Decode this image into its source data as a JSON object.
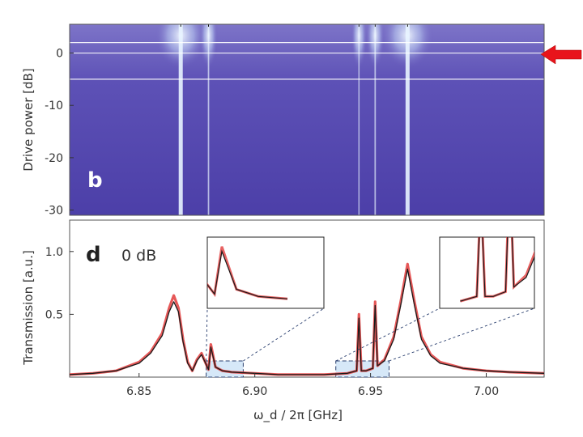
{
  "chart_data": [
    {
      "type": "heatmap",
      "panel_label": "b",
      "ylabel": "Drive power  [dB]",
      "y_ticks": [
        0,
        -10,
        -20,
        -30
      ],
      "ylim": [
        -31,
        5.5
      ],
      "xlim": [
        6.82,
        7.025
      ],
      "resonance_dips_ghz": [
        6.868,
        6.88,
        6.945,
        6.952,
        6.966
      ],
      "marker_power_lines_db": [
        2,
        0,
        -5
      ],
      "arrow_at_db": 0,
      "colors": {
        "background": "#5b4fb4",
        "dip": "#e8f4ff",
        "arrow": "#e8141b"
      }
    },
    {
      "type": "line",
      "panel_label": "d",
      "annotation": "0 dB",
      "ylabel": "Transmission  [a.u.]",
      "xlabel": "ω_d / 2π  [GHz]",
      "xlim": [
        6.82,
        7.025
      ],
      "ylim": [
        0,
        1.25
      ],
      "x_ticks": [
        "6.85",
        "6.90",
        "6.95",
        "7.00"
      ],
      "y_ticks": [
        "0.5",
        "1.0"
      ],
      "series": [
        {
          "color": "#e23b3b",
          "x": [
            6.82,
            6.83,
            6.84,
            6.85,
            6.855,
            6.86,
            6.863,
            6.865,
            6.867,
            6.869,
            6.871,
            6.873,
            6.875,
            6.877,
            6.879,
            6.88,
            6.881,
            6.883,
            6.886,
            6.89,
            6.9,
            6.91,
            6.92,
            6.93,
            6.94,
            6.944,
            6.945,
            6.946,
            6.948,
            6.951,
            6.952,
            6.953,
            6.956,
            6.96,
            6.963,
            6.966,
            6.969,
            6.972,
            6.976,
            6.98,
            6.99,
            7.0,
            7.01,
            7.025
          ],
          "y": [
            0.02,
            0.03,
            0.05,
            0.12,
            0.2,
            0.35,
            0.55,
            0.65,
            0.55,
            0.3,
            0.12,
            0.05,
            0.14,
            0.19,
            0.1,
            0.06,
            0.26,
            0.08,
            0.05,
            0.04,
            0.03,
            0.02,
            0.02,
            0.02,
            0.03,
            0.05,
            0.5,
            0.05,
            0.05,
            0.07,
            0.6,
            0.09,
            0.14,
            0.32,
            0.6,
            0.9,
            0.6,
            0.32,
            0.18,
            0.12,
            0.07,
            0.05,
            0.04,
            0.03
          ]
        },
        {
          "color": "#1a1a1a",
          "x": [
            6.82,
            6.83,
            6.84,
            6.85,
            6.855,
            6.86,
            6.863,
            6.865,
            6.867,
            6.869,
            6.871,
            6.873,
            6.875,
            6.877,
            6.879,
            6.88,
            6.881,
            6.883,
            6.886,
            6.89,
            6.9,
            6.91,
            6.92,
            6.93,
            6.94,
            6.944,
            6.945,
            6.946,
            6.948,
            6.951,
            6.952,
            6.953,
            6.956,
            6.96,
            6.963,
            6.966,
            6.969,
            6.972,
            6.976,
            6.98,
            6.99,
            7.0,
            7.01,
            7.025
          ],
          "y": [
            0.02,
            0.03,
            0.05,
            0.11,
            0.19,
            0.33,
            0.52,
            0.6,
            0.52,
            0.28,
            0.11,
            0.05,
            0.13,
            0.18,
            0.1,
            0.06,
            0.24,
            0.08,
            0.05,
            0.04,
            0.03,
            0.02,
            0.02,
            0.02,
            0.03,
            0.05,
            0.47,
            0.05,
            0.05,
            0.07,
            0.57,
            0.09,
            0.13,
            0.3,
            0.57,
            0.86,
            0.57,
            0.3,
            0.17,
            0.11,
            0.07,
            0.05,
            0.04,
            0.03
          ]
        }
      ],
      "zoom_regions_ghz": [
        [
          6.879,
          6.895
        ],
        [
          6.935,
          6.958
        ]
      ],
      "colors": {
        "zoom_box": "#d6e8f8",
        "frame": "#444444"
      }
    }
  ]
}
